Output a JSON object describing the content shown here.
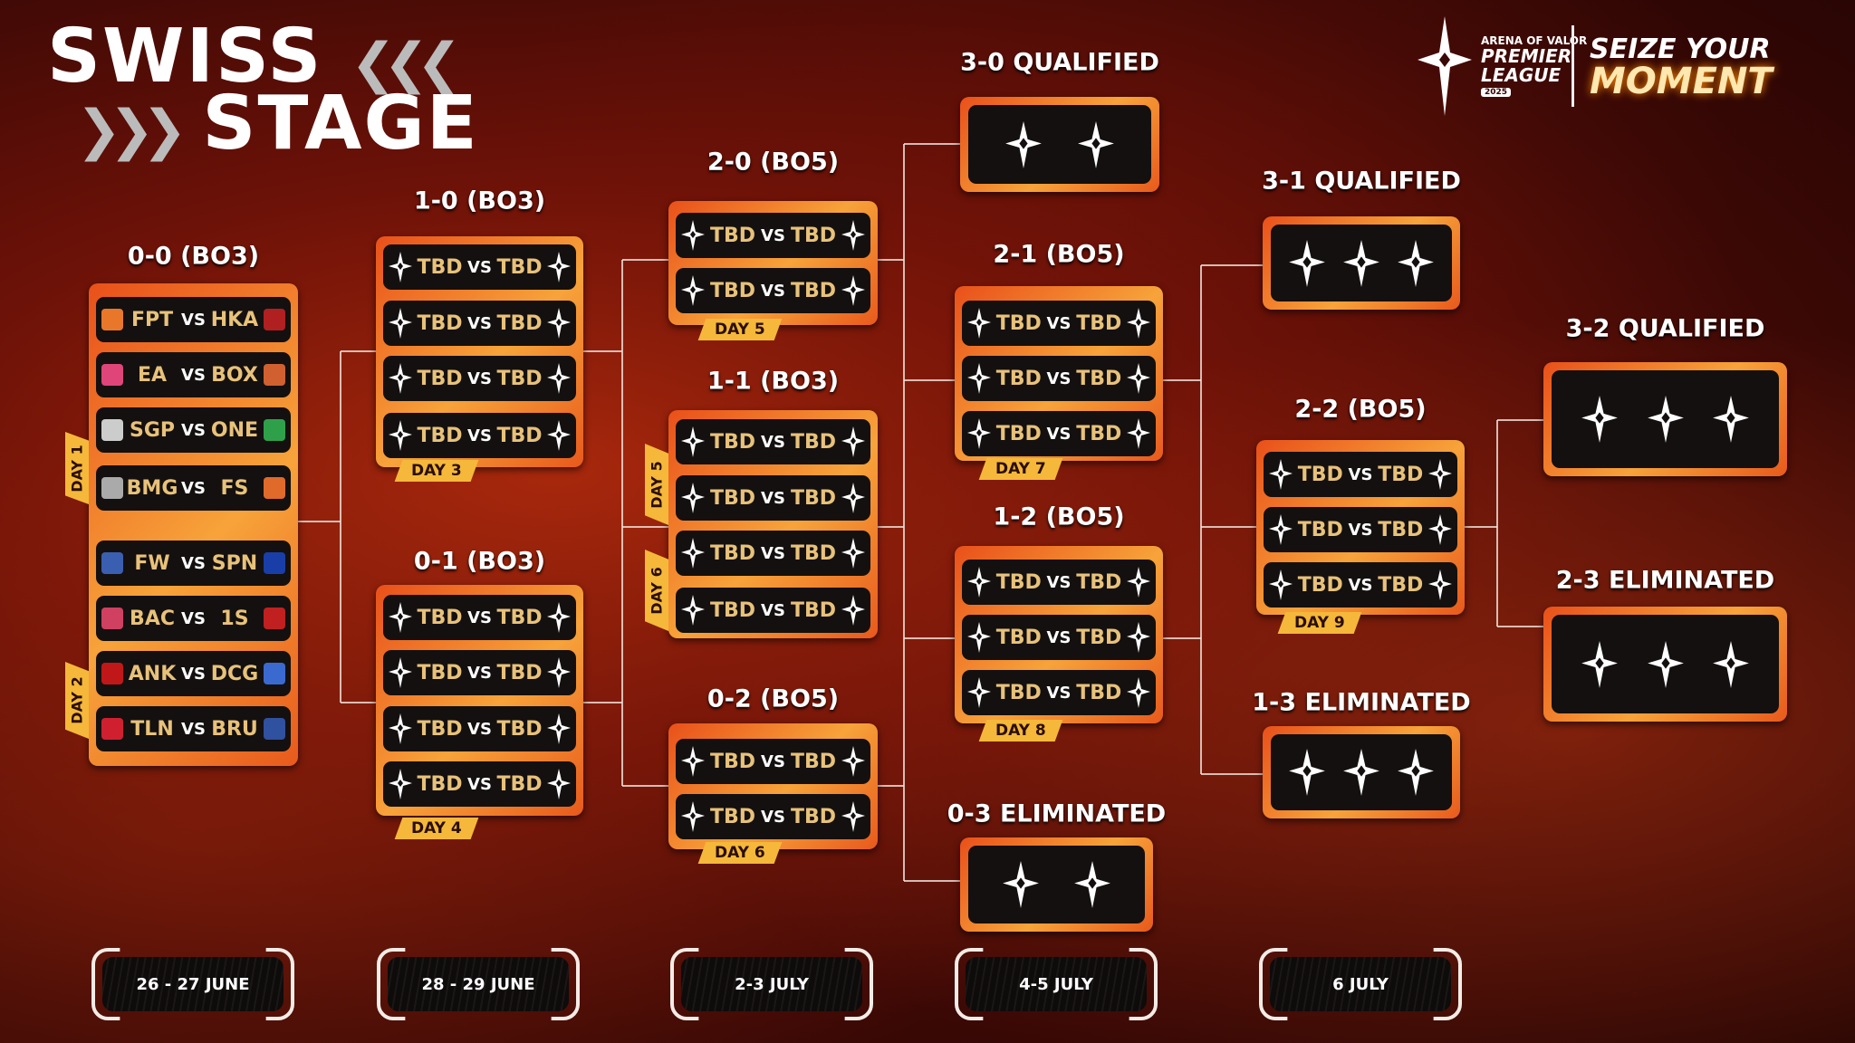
{
  "title": {
    "line1": "SWISS",
    "line2": "STAGE"
  },
  "brand": {
    "kicker": "ARENA OF VALOR",
    "name_line1": "PREMIER",
    "name_line2": "LEAGUE",
    "year": "2025",
    "slogan_line1": "SEIZE YOUR",
    "slogan_line2": "MOMENT"
  },
  "colors": {
    "frame": "#f08a2a",
    "team_text": "#e8c27a",
    "row_bg": "#141010",
    "day_tag": "#f5b83a"
  },
  "vs_label": "VS",
  "stages": [
    {
      "id": "s00",
      "header": "0-0 (BO3)",
      "matches": [
        {
          "team1": "FPT",
          "logo1": "#e8772a",
          "team2": "HKA",
          "logo2": "#b02020"
        },
        {
          "team1": "EA",
          "logo1": "#e0457a",
          "team2": "BOX",
          "logo2": "#d06030"
        },
        {
          "team1": "SGP",
          "logo1": "#cccccc",
          "team2": "ONE",
          "logo2": "#2fa04a"
        },
        {
          "team1": "BMG",
          "logo1": "#aaaaaa",
          "team2": "FS",
          "logo2": "#e06a2a"
        },
        {
          "team1": "FW",
          "logo1": "#3b5fb0",
          "team2": "SPN",
          "logo2": "#1a3ea8"
        },
        {
          "team1": "BAC",
          "logo1": "#d04060",
          "team2": "1S",
          "logo2": "#c02020"
        },
        {
          "team1": "ANK",
          "logo1": "#c01818",
          "team2": "DCG",
          "logo2": "#3a6ad0"
        },
        {
          "team1": "TLN",
          "logo1": "#d02030",
          "team2": "BRU",
          "logo2": "#3050a0"
        }
      ],
      "side_tags": [
        "DAY 1",
        "DAY 2"
      ]
    },
    {
      "id": "s10",
      "header": "1-0 (BO3)",
      "matches": 4,
      "day": "DAY 3"
    },
    {
      "id": "s01",
      "header": "0-1 (BO3)",
      "matches": 4,
      "day": "DAY 4"
    },
    {
      "id": "s20",
      "header": "2-0 (BO5)",
      "matches": 2,
      "day": "DAY 5"
    },
    {
      "id": "s11",
      "header": "1-1 (BO3)",
      "matches": 4,
      "side_tags": [
        "DAY 5",
        "DAY 6"
      ]
    },
    {
      "id": "s02",
      "header": "0-2 (BO5)",
      "matches": 2,
      "day": "DAY 6"
    },
    {
      "id": "s30",
      "header": "3-0 QUALIFIED",
      "slots": 2
    },
    {
      "id": "s21",
      "header": "2-1 (BO5)",
      "matches": 3,
      "day": "DAY 7"
    },
    {
      "id": "s12",
      "header": "1-2 (BO5)",
      "matches": 3,
      "day": "DAY 8"
    },
    {
      "id": "s03",
      "header": "0-3 ELIMINATED",
      "slots": 2
    },
    {
      "id": "s31",
      "header": "3-1 QUALIFIED",
      "slots": 3
    },
    {
      "id": "s22",
      "header": "2-2 (BO5)",
      "matches": 3,
      "day": "DAY 9"
    },
    {
      "id": "s13",
      "header": "1-3 ELIMINATED",
      "slots": 3
    },
    {
      "id": "s32",
      "header": "3-2 QUALIFIED",
      "slots": 3
    },
    {
      "id": "s23",
      "header": "2-3 ELIMINATED",
      "slots": 3
    }
  ],
  "tbd_label": "TBD",
  "dates": [
    "26 - 27 JUNE",
    "28 - 29 JUNE",
    "2-3 JULY",
    "4-5 JULY",
    "6 JULY"
  ]
}
